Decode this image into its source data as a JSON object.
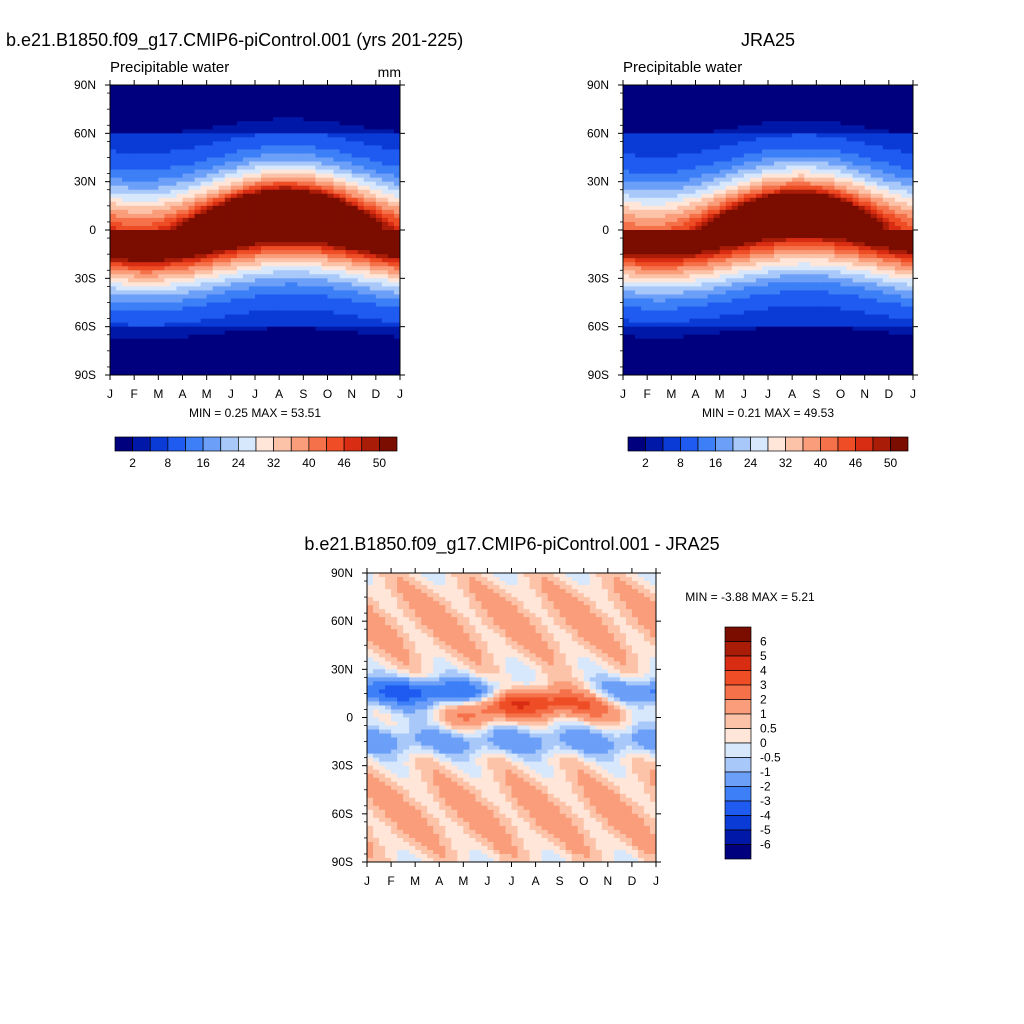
{
  "chart_data": [
    {
      "type": "heatmap",
      "id": "model",
      "title": "b.e21.B1850.f09_g17.CMIP6-piControl.001 (yrs 201-225)",
      "left_label": "Precipitable water",
      "units": "mm",
      "x_tick_labels": [
        "J",
        "F",
        "M",
        "A",
        "M",
        "J",
        "J",
        "A",
        "S",
        "O",
        "N",
        "D",
        "J"
      ],
      "y_tick_labels": [
        "90N",
        "60N",
        "30N",
        "0",
        "30S",
        "60S",
        "90S"
      ],
      "xlim": [
        0,
        12
      ],
      "ylim": [
        -90,
        90
      ],
      "stats": "MIN =   0.25 MAX =   53.51",
      "min": 0.25,
      "max": 53.51,
      "colorbar_labels": [
        "2",
        "8",
        "16",
        "24",
        "32",
        "40",
        "46",
        "50"
      ],
      "colorbar_levels": [
        2,
        4,
        8,
        12,
        16,
        20,
        24,
        28,
        32,
        36,
        40,
        43,
        46,
        48,
        50
      ],
      "colors": [
        "#00007f",
        "#0018a8",
        "#0a3bd6",
        "#1f5bf0",
        "#3d7ff6",
        "#6b9ff8",
        "#a8c8fa",
        "#d7e7fc",
        "#ffe6d8",
        "#fcc3a9",
        "#fa9d7a",
        "#f5714a",
        "#ee4d25",
        "#d82d12",
        "#a91d08",
        "#7a0c00"
      ]
    },
    {
      "type": "heatmap",
      "id": "obs",
      "title": "JRA25",
      "left_label": "Precipitable water",
      "x_tick_labels": [
        "J",
        "F",
        "M",
        "A",
        "M",
        "J",
        "J",
        "A",
        "S",
        "O",
        "N",
        "D",
        "J"
      ],
      "y_tick_labels": [
        "90N",
        "60N",
        "30N",
        "0",
        "30S",
        "60S",
        "90S"
      ],
      "xlim": [
        0,
        12
      ],
      "ylim": [
        -90,
        90
      ],
      "stats": "MIN =   0.21 MAX =   49.53",
      "min": 0.21,
      "max": 49.53,
      "colorbar_labels": [
        "2",
        "8",
        "16",
        "24",
        "32",
        "40",
        "46",
        "50"
      ],
      "colorbar_levels": [
        2,
        4,
        8,
        12,
        16,
        20,
        24,
        28,
        32,
        36,
        40,
        43,
        46,
        48,
        50
      ],
      "colors": [
        "#00007f",
        "#0018a8",
        "#0a3bd6",
        "#1f5bf0",
        "#3d7ff6",
        "#6b9ff8",
        "#a8c8fa",
        "#d7e7fc",
        "#ffe6d8",
        "#fcc3a9",
        "#fa9d7a",
        "#f5714a",
        "#ee4d25",
        "#d82d12",
        "#a91d08",
        "#7a0c00"
      ]
    },
    {
      "type": "heatmap",
      "id": "diff",
      "title": "b.e21.B1850.f09_g17.CMIP6-piControl.001 - JRA25",
      "x_tick_labels": [
        "J",
        "F",
        "M",
        "A",
        "M",
        "J",
        "J",
        "A",
        "S",
        "O",
        "N",
        "D",
        "J"
      ],
      "y_tick_labels": [
        "90N",
        "60N",
        "30N",
        "0",
        "30S",
        "60S",
        "90S"
      ],
      "xlim": [
        0,
        12
      ],
      "ylim": [
        -90,
        90
      ],
      "stats": "MIN =  -3.88 MAX =    5.21",
      "min": -3.88,
      "max": 5.21,
      "colorbar_labels": [
        "6",
        "5",
        "4",
        "3",
        "2",
        "1",
        "0.5",
        "0",
        "-0.5",
        "-1",
        "-2",
        "-3",
        "-4",
        "-5",
        "-6"
      ],
      "colorbar_levels": [
        -6,
        -5,
        -4,
        -3,
        -2,
        -1,
        -0.5,
        0,
        0.5,
        1,
        2,
        3,
        4,
        5,
        6
      ],
      "colors": [
        "#00007f",
        "#0018a8",
        "#0a3bd6",
        "#1f5bf0",
        "#3d7ff6",
        "#6b9ff8",
        "#a8c8fa",
        "#d7e7fc",
        "#ffe6d8",
        "#fcc3a9",
        "#fa9d7a",
        "#f5714a",
        "#ee4d25",
        "#d82d12",
        "#a91d08",
        "#7a0c00"
      ]
    }
  ]
}
